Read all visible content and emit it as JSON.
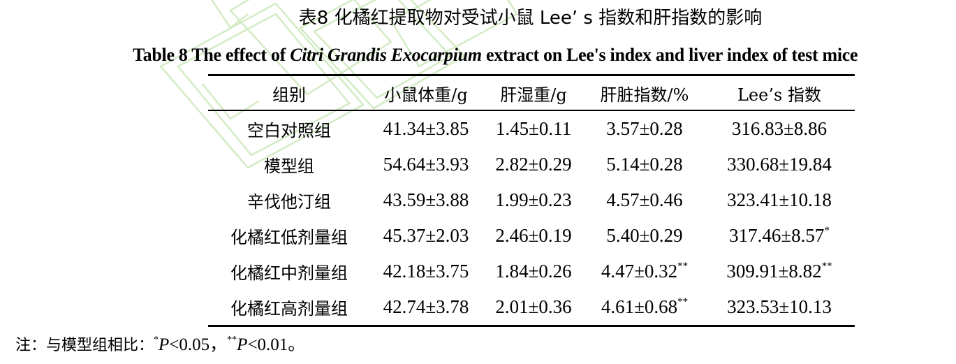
{
  "title_zh": "表8 化橘红提取物对受试小鼠 Lee’ s 指数和肝指数的影响",
  "title_en": {
    "prefix": "Table 8 The effect of ",
    "species": "Citri Grandis Exocarpium",
    "suffix": " extract on Lee's index and liver index of test mice"
  },
  "table": {
    "headers": [
      "组别",
      "小鼠体重/g",
      "肝湿重/g",
      "肝脏指数/%",
      "Lee’s 指数"
    ],
    "rows": [
      {
        "group": "空白对照组",
        "weight": "41.34±3.85",
        "liver_wet": "1.45±0.11",
        "liver_index": "3.57±0.28",
        "liver_index_mark": "",
        "lee": "316.83±8.86",
        "lee_mark": ""
      },
      {
        "group": "模型组",
        "weight": "54.64±3.93",
        "liver_wet": "2.82±0.29",
        "liver_index": "5.14±0.28",
        "liver_index_mark": "",
        "lee": "330.68±19.84",
        "lee_mark": ""
      },
      {
        "group": "辛伐他汀组",
        "weight": "43.59±3.88",
        "liver_wet": "1.99±0.23",
        "liver_index": "4.57±0.46",
        "liver_index_mark": "",
        "lee": "323.41±10.18",
        "lee_mark": ""
      },
      {
        "group": "化橘红低剂量组",
        "weight": "45.37±2.03",
        "liver_wet": "2.46±0.19",
        "liver_index": "5.40±0.29",
        "liver_index_mark": "",
        "lee": "317.46±8.57",
        "lee_mark": "*"
      },
      {
        "group": "化橘红中剂量组",
        "weight": "42.18±3.75",
        "liver_wet": "1.84±0.26",
        "liver_index": "4.47±0.32",
        "liver_index_mark": "**",
        "lee": "309.91±8.82",
        "lee_mark": "**"
      },
      {
        "group": "化橘红高剂量组",
        "weight": "42.74±3.78",
        "liver_wet": "2.01±0.36",
        "liver_index": "4.61±0.68",
        "liver_index_mark": "**",
        "lee": "323.53±10.13",
        "lee_mark": ""
      }
    ]
  },
  "note": {
    "prefix": "注：与模型组相比：",
    "mark1": "*",
    "p1_letter": "P",
    "p1_rest": "<0.05，",
    "mark2": "**",
    "p2_letter": "P",
    "p2_rest": "<0.01。"
  },
  "colors": {
    "text": "#000000",
    "watermark": "#c8e6b4"
  }
}
